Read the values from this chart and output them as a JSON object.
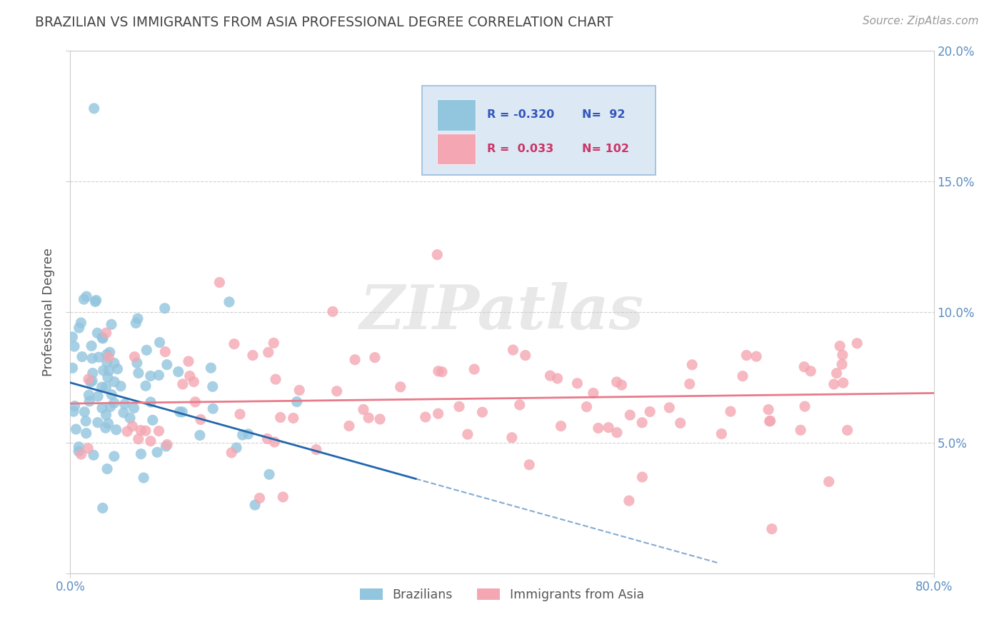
{
  "title": "BRAZILIAN VS IMMIGRANTS FROM ASIA PROFESSIONAL DEGREE CORRELATION CHART",
  "source": "Source: ZipAtlas.com",
  "ylabel": "Professional Degree",
  "watermark": "ZIPatlas",
  "legend": {
    "blue_R": "-0.320",
    "blue_N": "92",
    "pink_R": "0.033",
    "pink_N": "102",
    "label_blue": "Brazilians",
    "label_pink": "Immigrants from Asia"
  },
  "blue_color": "#92c5de",
  "pink_color": "#f4a7b2",
  "blue_line_color": "#2166ac",
  "pink_line_color": "#e87a8a",
  "xlim": [
    0.0,
    0.8
  ],
  "ylim": [
    0.0,
    0.2
  ],
  "yticks": [
    0.0,
    0.05,
    0.1,
    0.15,
    0.2
  ],
  "ytick_labels": [
    "",
    "5.0%",
    "10.0%",
    "15.0%",
    "20.0%"
  ],
  "xticks": [
    0.0,
    0.8
  ],
  "xtick_labels": [
    "0.0%",
    "80.0%"
  ],
  "blue_scatter_seed": 7,
  "pink_scatter_seed": 13,
  "bg_color": "#ffffff",
  "grid_color": "#cccccc",
  "title_color": "#444444",
  "axis_label_color": "#555555",
  "tick_label_color": "#5b8ec4",
  "legend_box_color": "#dce9f5",
  "legend_border_color": "#99bbdd"
}
